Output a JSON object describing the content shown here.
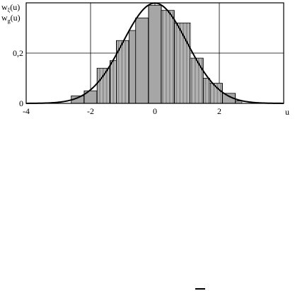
{
  "chart_data": {
    "type": "bar",
    "title": "",
    "ylabel_lines": [
      {
        "text": "w",
        "sub": "ξ",
        "tail": "(u)"
      },
      {
        "text": "w",
        "sub": "g",
        "tail": "(u)"
      }
    ],
    "xlabel": "u",
    "xlim": [
      -4,
      4
    ],
    "ylim": [
      0,
      0.4
    ],
    "x_ticks": [
      {
        "value": -4,
        "label": "-4"
      },
      {
        "value": -2,
        "label": "-2"
      },
      {
        "value": 0,
        "label": "0"
      },
      {
        "value": 2,
        "label": "2"
      }
    ],
    "y_ticks": [
      {
        "value": 0,
        "label": "0"
      },
      {
        "value": 0.2,
        "label": "0,2"
      }
    ],
    "grid": true,
    "bars": [
      {
        "x0": -2.6,
        "x1": -2.2,
        "y": 0.03
      },
      {
        "x0": -2.2,
        "x1": -1.8,
        "y": 0.05
      },
      {
        "x0": -1.8,
        "x1": -1.4,
        "y": 0.14
      },
      {
        "x0": -1.4,
        "x1": -1.2,
        "y": 0.17
      },
      {
        "x0": -1.2,
        "x1": -0.8,
        "y": 0.25
      },
      {
        "x0": -0.8,
        "x1": -0.6,
        "y": 0.29
      },
      {
        "x0": -0.6,
        "x1": -0.2,
        "y": 0.34
      },
      {
        "x0": -0.2,
        "x1": 0.2,
        "y": 0.39
      },
      {
        "x0": 0.2,
        "x1": 0.6,
        "y": 0.37
      },
      {
        "x0": 0.6,
        "x1": 1.1,
        "y": 0.32
      },
      {
        "x0": 1.1,
        "x1": 1.5,
        "y": 0.18
      },
      {
        "x0": 1.5,
        "x1": 1.7,
        "y": 0.1
      },
      {
        "x0": 1.7,
        "x1": 2.1,
        "y": 0.08
      },
      {
        "x0": 2.1,
        "x1": 2.5,
        "y": 0.04
      },
      {
        "x0": 2.5,
        "x1": 2.7,
        "y": 0.01
      }
    ],
    "curve": {
      "type": "normal_pdf",
      "mean": 0,
      "std": 1
    }
  }
}
